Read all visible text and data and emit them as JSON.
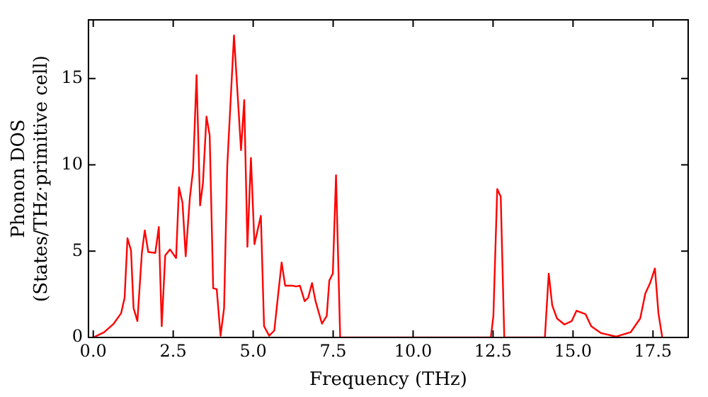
{
  "chart_data": {
    "type": "line",
    "xlabel": "Frequency (THz)",
    "ylabel": "Phonon DOS\n(States/THz·primitive cell)",
    "xlim": [
      -0.15,
      18.6
    ],
    "xticks": [
      {
        "value": 0,
        "label": "0.0"
      },
      {
        "value": 2.5,
        "label": "2.5"
      },
      {
        "value": 5,
        "label": "5.0"
      },
      {
        "value": 7.5,
        "label": "7.5"
      },
      {
        "value": 10,
        "label": "10.0"
      },
      {
        "value": 12.5,
        "label": "12.5"
      },
      {
        "value": 15,
        "label": "15.0"
      },
      {
        "value": 17.5,
        "label": "17.5"
      }
    ],
    "ylim": [
      0,
      18.4
    ],
    "yticks": [
      0,
      5,
      10,
      15
    ],
    "legend": false,
    "marker": "none",
    "line_style": "solid",
    "x": [
      0,
      0.34,
      0.64,
      0.87,
      0.98,
      1.07,
      1.18,
      1.26,
      1.38,
      1.52,
      1.61,
      1.72,
      1.94,
      2.05,
      2.14,
      2.25,
      2.4,
      2.59,
      2.68,
      2.79,
      2.89,
      3.02,
      3.12,
      3.23,
      3.34,
      3.43,
      3.54,
      3.64,
      3.75,
      3.86,
      3.98,
      4.09,
      4.19,
      4.4,
      4.62,
      4.72,
      4.82,
      4.93,
      5.04,
      5.24,
      5.34,
      5.5,
      5.66,
      5.77,
      5.89,
      6.0,
      6.23,
      6.34,
      6.46,
      6.61,
      6.72,
      6.84,
      6.95,
      7.15,
      7.3,
      7.38,
      7.49,
      7.59,
      7.72,
      12.43,
      12.51,
      12.63,
      12.74,
      12.85,
      14.12,
      14.24,
      14.35,
      14.5,
      14.73,
      14.96,
      15.11,
      15.39,
      15.57,
      15.88,
      16.34,
      16.8,
      17.1,
      17.26,
      17.41,
      17.56,
      17.67,
      17.79
    ],
    "series": [
      {
        "color": "#ff0000",
        "values": [
          0,
          0.3,
          0.8,
          1.4,
          2.3,
          5.75,
          5.05,
          1.7,
          0.95,
          4.9,
          6.2,
          4.95,
          4.9,
          6.4,
          0.65,
          4.75,
          5.1,
          4.6,
          8.7,
          7.8,
          4.7,
          8.1,
          9.7,
          15.2,
          7.65,
          8.95,
          12.8,
          11.7,
          2.85,
          2.8,
          0.1,
          1.7,
          9.95,
          17.5,
          10.85,
          13.75,
          5.25,
          10.4,
          5.4,
          7.05,
          0.65,
          0.1,
          0.4,
          2.3,
          4.35,
          3.0,
          3.0,
          2.95,
          3.0,
          2.1,
          2.3,
          3.15,
          2.1,
          0.8,
          1.25,
          3.3,
          3.7,
          9.4,
          0,
          0,
          1.25,
          8.6,
          8.15,
          0,
          0,
          3.7,
          1.85,
          1.1,
          0.75,
          0.95,
          1.55,
          1.35,
          0.65,
          0.25,
          0.05,
          0.3,
          1.1,
          2.55,
          3.15,
          4.0,
          1.4,
          0
        ]
      }
    ]
  }
}
